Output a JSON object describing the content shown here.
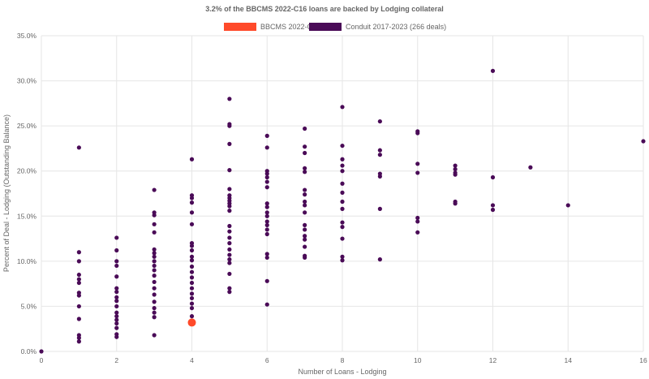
{
  "chart_data": {
    "type": "scatter",
    "title": "3.2% of the BBCMS 2022-C16 loans are backed by Lodging collateral",
    "xlabel": "Number of Loans - Lodging",
    "ylabel": "Percent of Deal - Lodging (Outstanding Balance)",
    "xlim": [
      0,
      16
    ],
    "ylim": [
      0,
      35
    ],
    "x_ticks": [
      "0",
      "2",
      "4",
      "6",
      "8",
      "10",
      "12",
      "14",
      "16"
    ],
    "y_ticks": [
      "0.0%",
      "5.0%",
      "10.0%",
      "15.0%",
      "20.0%",
      "25.0%",
      "30.0%",
      "35.0%"
    ],
    "grid": true,
    "legend_position": "top",
    "series": [
      {
        "name": "BBCMS 2022-C16",
        "color": "#ff4a2a",
        "points": [
          [
            4,
            3.2
          ]
        ]
      },
      {
        "name": "Conduit 2017-2023 (266 deals)",
        "color": "#4a0b57",
        "points": [
          [
            0,
            0
          ],
          [
            1,
            22.6
          ],
          [
            1,
            11.0
          ],
          [
            1,
            10.0
          ],
          [
            1,
            8.5
          ],
          [
            1,
            8.0
          ],
          [
            1,
            7.6
          ],
          [
            1,
            6.5
          ],
          [
            1,
            6.2
          ],
          [
            1,
            5.0
          ],
          [
            1,
            3.6
          ],
          [
            1,
            1.8
          ],
          [
            1,
            1.5
          ],
          [
            1,
            1.1
          ],
          [
            2,
            12.6
          ],
          [
            2,
            11.2
          ],
          [
            2,
            10.0
          ],
          [
            2,
            9.5
          ],
          [
            2,
            8.3
          ],
          [
            2,
            7.0
          ],
          [
            2,
            6.6
          ],
          [
            2,
            6.0
          ],
          [
            2,
            5.6
          ],
          [
            2,
            5.0
          ],
          [
            2,
            4.3
          ],
          [
            2,
            3.9
          ],
          [
            2,
            3.5
          ],
          [
            2,
            3.1
          ],
          [
            2,
            2.6
          ],
          [
            2,
            1.9
          ],
          [
            2,
            1.6
          ],
          [
            3,
            17.9
          ],
          [
            3,
            15.4
          ],
          [
            3,
            15.1
          ],
          [
            3,
            14.1
          ],
          [
            3,
            13.2
          ],
          [
            3,
            11.3
          ],
          [
            3,
            10.9
          ],
          [
            3,
            10.5
          ],
          [
            3,
            10.0
          ],
          [
            3,
            9.5
          ],
          [
            3,
            9.0
          ],
          [
            3,
            8.4
          ],
          [
            3,
            7.7
          ],
          [
            3,
            7.0
          ],
          [
            3,
            6.3
          ],
          [
            3,
            5.5
          ],
          [
            3,
            4.8
          ],
          [
            3,
            4.3
          ],
          [
            3,
            3.8
          ],
          [
            3,
            1.8
          ],
          [
            4,
            21.3
          ],
          [
            4,
            17.3
          ],
          [
            4,
            17.0
          ],
          [
            4,
            16.5
          ],
          [
            4,
            15.4
          ],
          [
            4,
            14.1
          ],
          [
            4,
            12.0
          ],
          [
            4,
            11.7
          ],
          [
            4,
            11.2
          ],
          [
            4,
            10.5
          ],
          [
            4,
            10.1
          ],
          [
            4,
            9.4
          ],
          [
            4,
            8.8
          ],
          [
            4,
            8.2
          ],
          [
            4,
            7.6
          ],
          [
            4,
            7.0
          ],
          [
            4,
            6.4
          ],
          [
            4,
            5.9
          ],
          [
            4,
            5.3
          ],
          [
            4,
            4.8
          ],
          [
            4,
            3.9
          ],
          [
            5,
            28.0
          ],
          [
            5,
            25.2
          ],
          [
            5,
            25.0
          ],
          [
            5,
            23.0
          ],
          [
            5,
            20.1
          ],
          [
            5,
            18.0
          ],
          [
            5,
            17.3
          ],
          [
            5,
            17.0
          ],
          [
            5,
            16.7
          ],
          [
            5,
            16.4
          ],
          [
            5,
            16.1
          ],
          [
            5,
            15.6
          ],
          [
            5,
            13.9
          ],
          [
            5,
            13.3
          ],
          [
            5,
            12.6
          ],
          [
            5,
            12.0
          ],
          [
            5,
            11.3
          ],
          [
            5,
            10.7
          ],
          [
            5,
            10.2
          ],
          [
            5,
            9.8
          ],
          [
            5,
            8.6
          ],
          [
            5,
            7.0
          ],
          [
            5,
            6.6
          ],
          [
            6,
            23.9
          ],
          [
            6,
            22.6
          ],
          [
            6,
            20.0
          ],
          [
            6,
            19.7
          ],
          [
            6,
            19.3
          ],
          [
            6,
            18.8
          ],
          [
            6,
            18.2
          ],
          [
            6,
            16.4
          ],
          [
            6,
            16.0
          ],
          [
            6,
            15.4
          ],
          [
            6,
            15.0
          ],
          [
            6,
            14.4
          ],
          [
            6,
            14.0
          ],
          [
            6,
            13.5
          ],
          [
            6,
            13.0
          ],
          [
            6,
            10.8
          ],
          [
            6,
            10.4
          ],
          [
            6,
            7.8
          ],
          [
            6,
            5.2
          ],
          [
            7,
            24.7
          ],
          [
            7,
            22.7
          ],
          [
            7,
            22.0
          ],
          [
            7,
            20.3
          ],
          [
            7,
            19.9
          ],
          [
            7,
            17.9
          ],
          [
            7,
            17.4
          ],
          [
            7,
            16.6
          ],
          [
            7,
            16.2
          ],
          [
            7,
            15.4
          ],
          [
            7,
            14.0
          ],
          [
            7,
            13.5
          ],
          [
            7,
            12.8
          ],
          [
            7,
            12.4
          ],
          [
            7,
            11.6
          ],
          [
            7,
            10.6
          ],
          [
            7,
            10.4
          ],
          [
            8,
            27.1
          ],
          [
            8,
            22.8
          ],
          [
            8,
            21.3
          ],
          [
            8,
            20.6
          ],
          [
            8,
            20.0
          ],
          [
            8,
            18.6
          ],
          [
            8,
            17.6
          ],
          [
            8,
            16.6
          ],
          [
            8,
            15.8
          ],
          [
            8,
            14.3
          ],
          [
            8,
            13.8
          ],
          [
            8,
            12.5
          ],
          [
            8,
            10.5
          ],
          [
            8,
            10.1
          ],
          [
            9,
            25.5
          ],
          [
            9,
            22.3
          ],
          [
            9,
            21.8
          ],
          [
            9,
            19.7
          ],
          [
            9,
            19.4
          ],
          [
            9,
            15.8
          ],
          [
            9,
            10.2
          ],
          [
            10,
            24.4
          ],
          [
            10,
            24.2
          ],
          [
            10,
            20.8
          ],
          [
            10,
            19.8
          ],
          [
            10,
            14.8
          ],
          [
            10,
            14.4
          ],
          [
            10,
            13.2
          ],
          [
            11,
            20.6
          ],
          [
            11,
            20.2
          ],
          [
            11,
            19.8
          ],
          [
            11,
            19.6
          ],
          [
            11,
            16.6
          ],
          [
            11,
            16.4
          ],
          [
            12,
            31.1
          ],
          [
            12,
            19.3
          ],
          [
            12,
            16.2
          ],
          [
            12,
            15.7
          ],
          [
            13,
            20.4
          ],
          [
            14,
            16.2
          ],
          [
            16,
            23.3
          ]
        ]
      }
    ]
  }
}
